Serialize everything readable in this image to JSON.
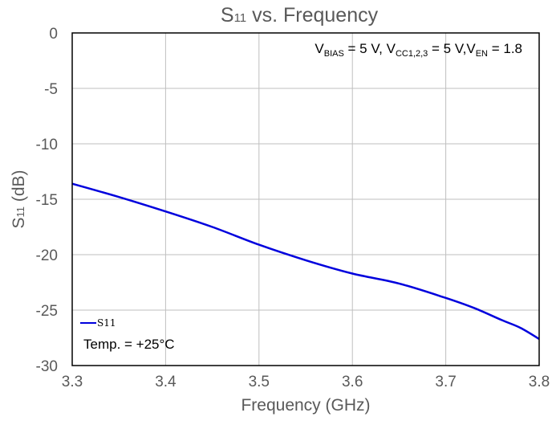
{
  "chart_data": {
    "type": "line",
    "title": {
      "main": "S",
      "sub": "11",
      "rest": " vs. Frequency"
    },
    "xlabel": "Frequency (GHz)",
    "ylabel": {
      "main": "S",
      "sub": "11",
      "rest": " (dB)"
    },
    "xlim": [
      3.3,
      3.8
    ],
    "ylim": [
      -30,
      0
    ],
    "xticks": [
      3.3,
      3.4,
      3.5,
      3.6,
      3.7,
      3.8
    ],
    "xtick_labels": [
      "3.3",
      "3.4",
      "3.5",
      "3.6",
      "3.7",
      "3.8"
    ],
    "yticks": [
      0,
      -5,
      -10,
      -15,
      -20,
      -25,
      -30
    ],
    "ytick_labels": [
      "0",
      "-5",
      "-10",
      "-15",
      "-20",
      "-25",
      "-30"
    ],
    "grid": true,
    "legend_position": "bottom-left",
    "series": [
      {
        "name": "S11",
        "color": "#0000dd",
        "x": [
          3.3,
          3.35,
          3.4,
          3.45,
          3.5,
          3.55,
          3.6,
          3.65,
          3.7,
          3.73,
          3.76,
          3.78,
          3.8
        ],
        "y": [
          -13.6,
          -14.8,
          -16.1,
          -17.5,
          -19.1,
          -20.5,
          -21.7,
          -22.6,
          -23.9,
          -24.8,
          -25.9,
          -26.6,
          -27.6
        ]
      }
    ],
    "annotations": {
      "conditions": [
        {
          "t": "V",
          "k": "n"
        },
        {
          "t": "BIAS",
          "k": "s"
        },
        {
          "t": " = 5 V, V",
          "k": "n"
        },
        {
          "t": "CC1,2,3",
          "k": "s"
        },
        {
          "t": " = 5 V,V",
          "k": "n"
        },
        {
          "t": "EN",
          "k": "s"
        },
        {
          "t": " = 1.8",
          "k": "n"
        }
      ],
      "temperature": "Temp. = +25°C"
    }
  }
}
